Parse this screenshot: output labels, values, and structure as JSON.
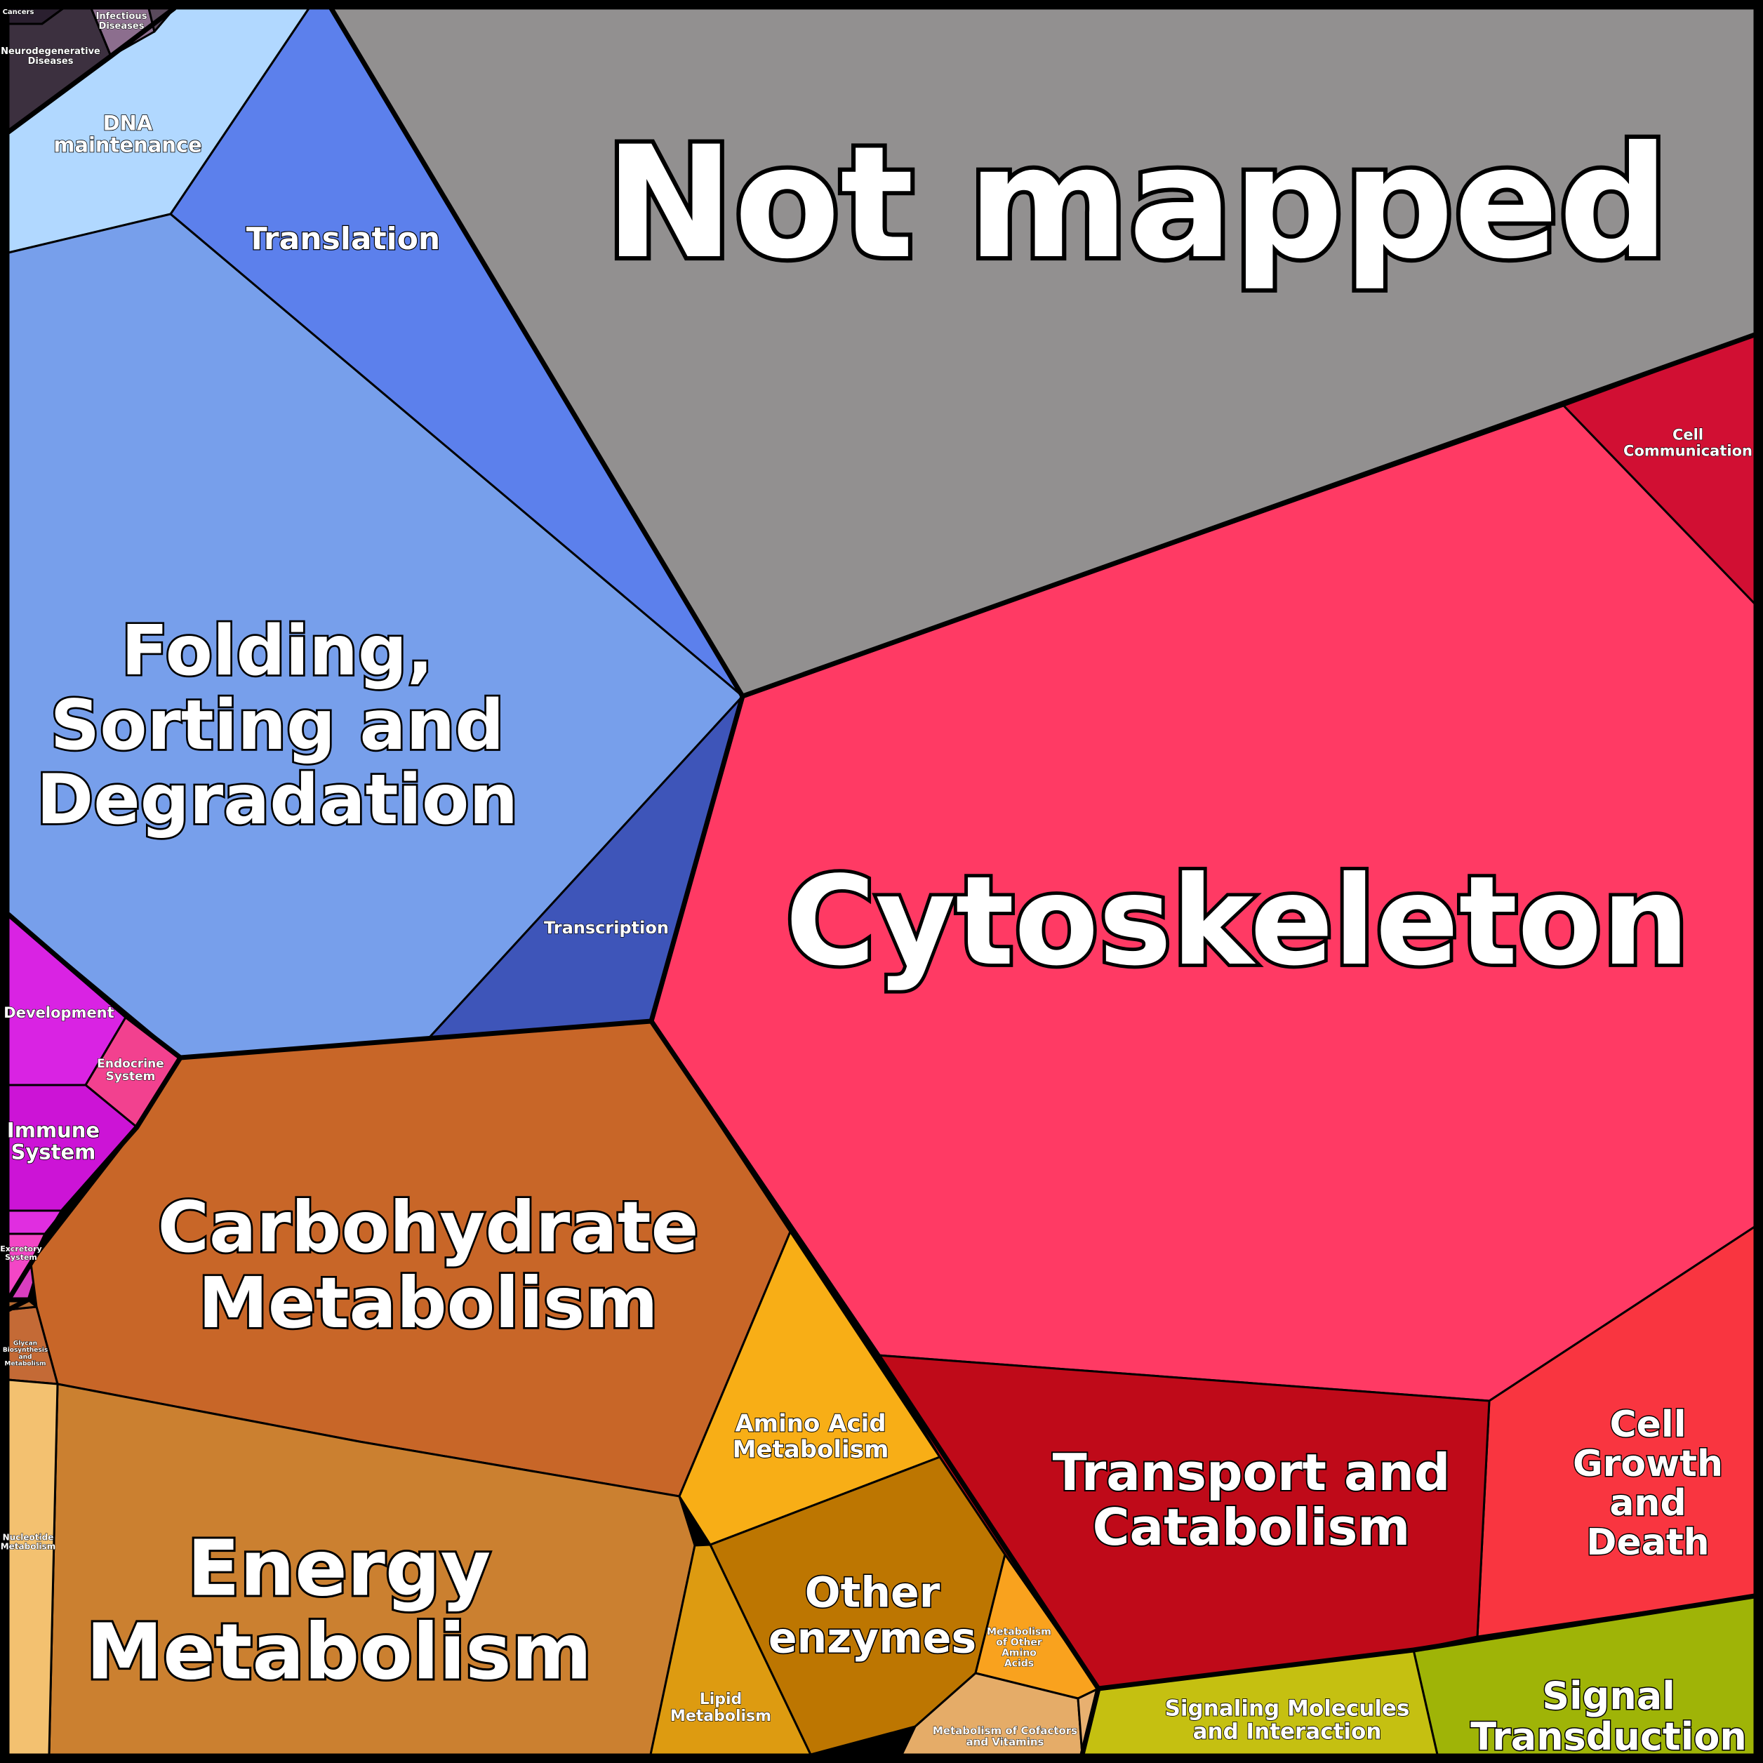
{
  "chart": {
    "cells": [
      {
        "key": "not_mapped",
        "label": "Not mapped",
        "color": "#929090"
      },
      {
        "key": "cytoskeleton",
        "label": "Cytoskeleton",
        "color": "#ff3a64"
      },
      {
        "key": "cell_communication",
        "label": "Cell Communication",
        "color": "#d10f33"
      },
      {
        "key": "cell_growth_death",
        "label": "Cell Growth and Death",
        "color": "#f93540"
      },
      {
        "key": "transport_catabolism",
        "label": "Transport and Catabolism",
        "color": "#bf0a19"
      },
      {
        "key": "signal_transduction",
        "label": "Signal Transduction",
        "color": "#9fb407"
      },
      {
        "key": "signaling_molecules",
        "label": "Signaling Molecules and Interaction",
        "color": "#c5c011"
      },
      {
        "key": "translation",
        "label": "Translation",
        "color": "#5c80ec"
      },
      {
        "key": "dna_maintenance",
        "label": "DNA maintenance",
        "color": "#b1d8ff"
      },
      {
        "key": "folding",
        "label": "Folding, Sorting and Degradation",
        "color": "#779feb"
      },
      {
        "key": "transcription",
        "label": "Transcription",
        "color": "#3e55b9"
      },
      {
        "key": "cancers",
        "label": "Cancers",
        "color": "#2a1f2f"
      },
      {
        "key": "neurodegenerative",
        "label": "Neurodegenerative Diseases",
        "color": "#3c303f"
      },
      {
        "key": "infectious",
        "label": "Infectious Diseases",
        "color": "#8c6e8e"
      },
      {
        "key": "disease_small",
        "label": "",
        "color": "#5a4a5c"
      },
      {
        "key": "development",
        "label": "Development",
        "color": "#d923e3"
      },
      {
        "key": "endocrine",
        "label": "Endocrine System",
        "color": "#f2418f"
      },
      {
        "key": "immune",
        "label": "Immune System",
        "color": "#cc14d6"
      },
      {
        "key": "org_small_1",
        "label": "",
        "color": "#e02ee0"
      },
      {
        "key": "excretory",
        "label": "Excretory System",
        "color": "#f346c6"
      },
      {
        "key": "org_small_2",
        "label": "",
        "color": "#d93ec0"
      },
      {
        "key": "carbohydrate",
        "label": "Carbohydrate Metabolism",
        "color": "#c86628"
      },
      {
        "key": "energy",
        "label": "Energy Metabolism",
        "color": "#cb8030"
      },
      {
        "key": "glycan",
        "label": "Glycan Biosynthesis and Metabolism",
        "color": "#c46a36"
      },
      {
        "key": "met_small_1",
        "label": "",
        "color": "#b56a30"
      },
      {
        "key": "nucleotide",
        "label": "Nucleotide Metabolism",
        "color": "#f3c170"
      },
      {
        "key": "amino_acid",
        "label": "Amino Acid Metabolism",
        "color": "#f8ae16"
      },
      {
        "key": "other_enzymes",
        "label": "Other enzymes",
        "color": "#bd7601"
      },
      {
        "key": "lipid",
        "label": "Lipid Metabolism",
        "color": "#dd9b11"
      },
      {
        "key": "other_amino",
        "label": "Metabolism of Other Amino Acids",
        "color": "#f9a21e"
      },
      {
        "key": "cofactors",
        "label": "Metabolism of Cofactors and Vitamins",
        "color": "#e5ac68"
      },
      {
        "key": "met_tiny",
        "label": "",
        "color": "#e8b070"
      }
    ]
  }
}
